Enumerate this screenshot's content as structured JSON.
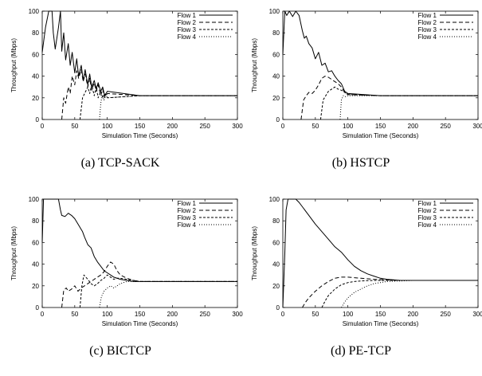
{
  "chart_data": [
    {
      "type": "line",
      "caption": "(a) TCP-SACK",
      "xlabel": "Simulation Time (Seconds)",
      "ylabel": "Throughput (Mbps)",
      "xlim": [
        0,
        300
      ],
      "ylim": [
        0,
        100
      ],
      "xticks": [
        0,
        50,
        100,
        150,
        200,
        250,
        300
      ],
      "yticks": [
        0,
        20,
        40,
        60,
        80,
        100
      ],
      "legend_position": "top-right",
      "series": [
        {
          "name": "Flow 1",
          "dash": "solid",
          "x": [
            0,
            5,
            10,
            15,
            17,
            20,
            25,
            28,
            30,
            33,
            36,
            40,
            43,
            46,
            50,
            53,
            56,
            60,
            63,
            66,
            70,
            73,
            76,
            80,
            83,
            86,
            90,
            93,
            96,
            100,
            150,
            200,
            250,
            300
          ],
          "y": [
            62,
            85,
            100,
            100,
            80,
            65,
            85,
            100,
            63,
            80,
            55,
            70,
            50,
            62,
            43,
            56,
            40,
            50,
            36,
            46,
            32,
            42,
            30,
            36,
            28,
            34,
            26,
            30,
            22,
            26,
            22,
            22,
            22,
            22
          ]
        },
        {
          "name": "Flow 2",
          "dash": "dashed",
          "x": [
            30,
            33,
            36,
            40,
            43,
            46,
            50,
            53,
            56,
            60,
            63,
            66,
            70,
            73,
            76,
            80,
            83,
            86,
            90,
            93,
            96,
            100,
            150,
            200,
            250,
            300
          ],
          "y": [
            0,
            20,
            15,
            30,
            24,
            40,
            32,
            45,
            38,
            46,
            35,
            42,
            30,
            38,
            27,
            34,
            26,
            32,
            22,
            28,
            20,
            24,
            22,
            22,
            22,
            22
          ]
        },
        {
          "name": "Flow 3",
          "dash": "short-dashed",
          "x": [
            58,
            62,
            66,
            70,
            73,
            76,
            80,
            83,
            86,
            90,
            93,
            96,
            100,
            150,
            200,
            250,
            300
          ],
          "y": [
            0,
            20,
            25,
            30,
            24,
            32,
            22,
            30,
            20,
            26,
            20,
            24,
            20,
            22,
            22,
            22,
            22
          ]
        },
        {
          "name": "Flow 4",
          "dash": "dotted",
          "x": [
            88,
            90,
            92,
            95,
            98,
            100,
            150,
            200,
            250,
            300
          ],
          "y": [
            0,
            15,
            22,
            18,
            24,
            20,
            22,
            22,
            22,
            22
          ]
        }
      ]
    },
    {
      "type": "line",
      "caption": "(b) HSTCP",
      "xlabel": "Simulation Time (Seconds)",
      "ylabel": "Throughput (Mbps)",
      "xlim": [
        0,
        300
      ],
      "ylim": [
        0,
        100
      ],
      "xticks": [
        0,
        50,
        100,
        150,
        200,
        250,
        300
      ],
      "yticks": [
        0,
        20,
        40,
        60,
        80,
        100
      ],
      "legend_position": "top-right",
      "series": [
        {
          "name": "Flow 1",
          "dash": "solid",
          "x": [
            0,
            3,
            6,
            10,
            15,
            20,
            25,
            30,
            33,
            36,
            40,
            45,
            50,
            55,
            60,
            65,
            70,
            75,
            80,
            85,
            90,
            95,
            100,
            150,
            200,
            250,
            300
          ],
          "y": [
            60,
            100,
            96,
            100,
            95,
            100,
            96,
            82,
            75,
            77,
            70,
            66,
            56,
            62,
            50,
            52,
            44,
            45,
            40,
            36,
            33,
            26,
            24,
            22,
            22,
            22,
            22
          ]
        },
        {
          "name": "Flow 2",
          "dash": "dashed",
          "x": [
            28,
            32,
            36,
            40,
            45,
            50,
            55,
            60,
            65,
            70,
            75,
            80,
            85,
            90,
            95,
            100,
            150,
            200,
            250,
            300
          ],
          "y": [
            0,
            18,
            22,
            25,
            24,
            27,
            32,
            38,
            40,
            39,
            37,
            35,
            33,
            30,
            25,
            23,
            22,
            22,
            22,
            22
          ]
        },
        {
          "name": "Flow 3",
          "dash": "short-dashed",
          "x": [
            58,
            62,
            66,
            70,
            75,
            80,
            85,
            90,
            95,
            100,
            150,
            200,
            250,
            300
          ],
          "y": [
            0,
            18,
            22,
            26,
            28,
            30,
            28,
            27,
            25,
            23,
            22,
            22,
            22,
            22
          ]
        },
        {
          "name": "Flow 4",
          "dash": "dotted",
          "x": [
            88,
            90,
            93,
            96,
            100,
            150,
            200,
            250,
            300
          ],
          "y": [
            0,
            18,
            22,
            21,
            22,
            22,
            22,
            22,
            22
          ]
        }
      ]
    },
    {
      "type": "line",
      "caption": "(c) BICTCP",
      "xlabel": "Simulation Time (Seconds)",
      "ylabel": "Throughput (Mbps)",
      "xlim": [
        0,
        300
      ],
      "ylim": [
        0,
        100
      ],
      "xticks": [
        0,
        50,
        100,
        150,
        200,
        250,
        300
      ],
      "yticks": [
        0,
        20,
        40,
        60,
        80,
        100
      ],
      "legend_position": "top-right",
      "series": [
        {
          "name": "Flow 1",
          "dash": "solid",
          "x": [
            0,
            2,
            5,
            10,
            20,
            25,
            28,
            30,
            35,
            40,
            45,
            50,
            55,
            60,
            62,
            65,
            70,
            75,
            80,
            85,
            90,
            95,
            100,
            105,
            110,
            120,
            130,
            140,
            150,
            200,
            250,
            300
          ],
          "y": [
            60,
            100,
            100,
            100,
            100,
            100,
            90,
            85,
            84,
            87,
            85,
            82,
            77,
            72,
            70,
            65,
            58,
            55,
            47,
            42,
            38,
            34,
            32,
            30,
            28,
            26,
            25,
            24,
            24,
            24,
            24,
            24
          ]
        },
        {
          "name": "Flow 2",
          "dash": "dashed",
          "x": [
            30,
            33,
            37,
            40,
            45,
            50,
            55,
            60,
            65,
            70,
            75,
            80,
            85,
            90,
            95,
            100,
            105,
            110,
            115,
            120,
            130,
            140,
            150,
            200,
            250,
            300
          ],
          "y": [
            0,
            16,
            18,
            15,
            17,
            20,
            15,
            18,
            20,
            22,
            24,
            26,
            28,
            30,
            33,
            38,
            42,
            40,
            34,
            30,
            27,
            25,
            24,
            24,
            24,
            24
          ]
        },
        {
          "name": "Flow 3",
          "dash": "short-dashed",
          "x": [
            58,
            61,
            64,
            67,
            70,
            75,
            80,
            85,
            90,
            95,
            100,
            105,
            110,
            115,
            120,
            130,
            140,
            150,
            200,
            250,
            300
          ],
          "y": [
            0,
            20,
            30,
            28,
            26,
            22,
            20,
            22,
            25,
            27,
            30,
            28,
            26,
            27,
            27,
            26,
            25,
            24,
            24,
            24,
            24
          ]
        },
        {
          "name": "Flow 4",
          "dash": "dotted",
          "x": [
            88,
            91,
            95,
            100,
            105,
            110,
            115,
            120,
            125,
            130,
            140,
            150,
            200,
            250,
            300
          ],
          "y": [
            0,
            10,
            15,
            18,
            20,
            18,
            20,
            22,
            23,
            24,
            24,
            24,
            24,
            24,
            24
          ]
        }
      ]
    },
    {
      "type": "line",
      "caption": "(d) PE-TCP",
      "xlabel": "Simulation Time (Seconds)",
      "ylabel": "Throughput (Mbps)",
      "xlim": [
        0,
        300
      ],
      "ylim": [
        0,
        100
      ],
      "xticks": [
        0,
        50,
        100,
        150,
        200,
        250,
        300
      ],
      "yticks": [
        0,
        20,
        40,
        60,
        80,
        100
      ],
      "legend_position": "top-right",
      "series": [
        {
          "name": "Flow 1",
          "dash": "solid",
          "x": [
            0,
            3,
            5,
            8,
            12,
            15,
            20,
            25,
            30,
            40,
            50,
            60,
            70,
            80,
            90,
            100,
            110,
            120,
            130,
            140,
            150,
            160,
            170,
            180,
            200,
            250,
            300
          ],
          "y": [
            0,
            50,
            90,
            100,
            100,
            100,
            100,
            97,
            93,
            85,
            77,
            70,
            63,
            56,
            51,
            44,
            38,
            34,
            31,
            29,
            27,
            26,
            25.5,
            25,
            25,
            25,
            25
          ]
        },
        {
          "name": "Flow 2",
          "dash": "dashed",
          "x": [
            30,
            35,
            40,
            50,
            60,
            70,
            80,
            90,
            100,
            110,
            120,
            140,
            160,
            180,
            200,
            250,
            300
          ],
          "y": [
            0,
            5,
            9,
            15,
            20,
            24,
            27,
            28,
            28,
            27.5,
            27,
            26,
            25.5,
            25,
            25,
            25,
            25
          ]
        },
        {
          "name": "Flow 3",
          "dash": "short-dashed",
          "x": [
            60,
            65,
            70,
            80,
            90,
            100,
            110,
            120,
            140,
            160,
            180,
            200,
            250,
            300
          ],
          "y": [
            0,
            6,
            11,
            17,
            21,
            23,
            24,
            24.5,
            25,
            25,
            25,
            25,
            25,
            25
          ]
        },
        {
          "name": "Flow 4",
          "dash": "dotted",
          "x": [
            90,
            95,
            100,
            110,
            120,
            130,
            140,
            150,
            160,
            180,
            200,
            250,
            300
          ],
          "y": [
            0,
            5,
            9,
            14,
            17,
            20,
            22,
            23,
            24,
            24.5,
            25,
            25,
            25
          ]
        }
      ]
    }
  ]
}
